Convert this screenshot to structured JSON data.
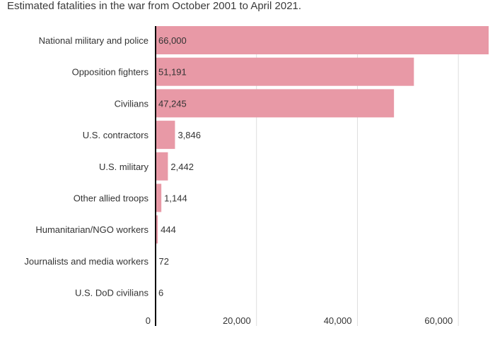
{
  "chart_data": {
    "type": "bar",
    "orientation": "horizontal",
    "title": "Estimated fatalities in the war from October 2001 to April 2021.",
    "categories": [
      "National military and police",
      "Opposition fighters",
      "Civilians",
      "U.S. contractors",
      "U.S. military",
      "Other allied troops",
      "Humanitarian/NGO workers",
      "Journalists and media workers",
      "U.S. DoD civilians"
    ],
    "values": [
      66000,
      51191,
      47245,
      3846,
      2442,
      1144,
      444,
      72,
      6
    ],
    "value_labels": [
      "66,000",
      "51,191",
      "47,245",
      "3,846",
      "2,442",
      "1,144",
      "444",
      "72",
      "6"
    ],
    "xticks": [
      0,
      20000,
      40000,
      60000
    ],
    "xtick_labels": [
      "0",
      "20,000",
      "40,000",
      "60,000"
    ],
    "xlim": [
      0,
      66000
    ],
    "xlabel": "",
    "ylabel": "",
    "grid": true,
    "bar_color": "#e899a6"
  }
}
